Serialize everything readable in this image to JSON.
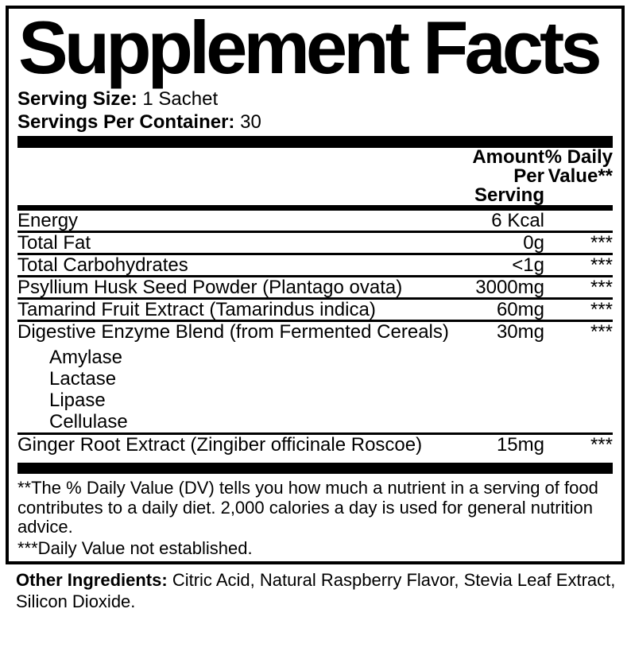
{
  "colors": {
    "text": "#000000",
    "background": "#ffffff",
    "rule": "#000000"
  },
  "panel": {
    "title": "Supplement Facts",
    "serving_size": {
      "label": "Serving Size:",
      "value": "1 Sachet"
    },
    "servings_per_container": {
      "label": "Servings Per Container:",
      "value": "30"
    },
    "columns": {
      "amount_line1": "Amount Per",
      "amount_line2": "Serving",
      "dv_line1": "% Daily",
      "dv_line2": "Value**"
    },
    "rows": [
      {
        "name": "Energy",
        "amount": "6 Kcal",
        "dv": ""
      },
      {
        "name": "Total Fat",
        "amount": "0g",
        "dv": "***"
      },
      {
        "name": "Total Carbohydrates",
        "amount": "<1g",
        "dv": "***"
      },
      {
        "name": "Psyllium Husk Seed Powder (Plantago ovata)",
        "amount": "3000mg",
        "dv": "***"
      },
      {
        "name": "Tamarind Fruit Extract (Tamarindus indica)",
        "amount": "60mg",
        "dv": "***"
      },
      {
        "name": "Digestive Enzyme Blend (from Fermented Cereals)",
        "amount": "30mg",
        "dv": "***",
        "sub_items": [
          "Amylase",
          "Lactase",
          "Lipase",
          "Cellulase"
        ]
      },
      {
        "name": "Ginger Root Extract (Zingiber officinale Roscoe)",
        "amount": "15mg",
        "dv": "***"
      }
    ],
    "footnotes": {
      "daily_value": "**The % Daily Value (DV) tells you how much a nutrient in a serving of food contributes to a daily diet. 2,000 calories a day is used for general nutrition advice.",
      "not_established": "***Daily Value not established."
    }
  },
  "other_ingredients": {
    "label": "Other Ingredients:",
    "value": "Citric Acid, Natural Raspberry Flavor, Stevia Leaf Extract, Silicon Dioxide."
  }
}
